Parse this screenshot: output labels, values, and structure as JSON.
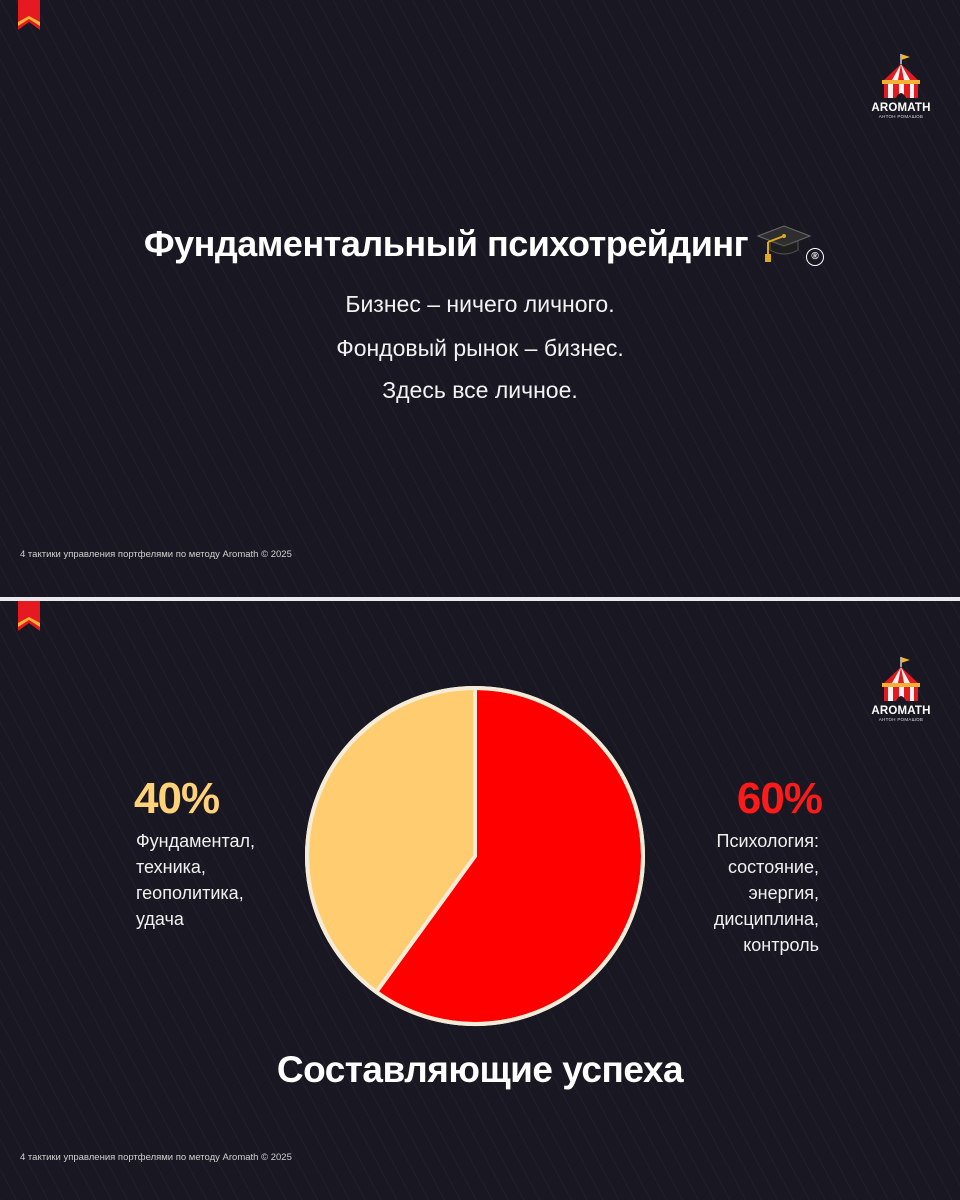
{
  "slide1": {
    "title": "Фундаментальный психотрейдинг",
    "registered_mark": "®",
    "lines": [
      "Бизнес – ничего личного.",
      "Фондовый рынок – бизнес.",
      "Здесь все личное."
    ],
    "footer": "4 тактики управления портфелями по методу Aromath © 2025"
  },
  "logo": {
    "name": "AROMATH",
    "subtitle": "АНТОН РОМАШОВ",
    "icon": "circus-tent-icon"
  },
  "slide2": {
    "title": "Составляющие успеха",
    "footer": "4 тактики управления портфелями по методу Aromath © 2025",
    "left": {
      "percent": "40%",
      "lines": [
        "Фундаментал,",
        "техника,",
        "геополитика,",
        "удача"
      ]
    },
    "right": {
      "percent": "60%",
      "lines": [
        "Психология:",
        "состояние,",
        "энергия,",
        "дисциплина,",
        "контроль"
      ]
    }
  },
  "chart_data": {
    "type": "pie",
    "title": "Составляющие успеха",
    "slices": [
      {
        "label": "Психология",
        "value": 60,
        "color": "#ff0000"
      },
      {
        "label": "Фундаментал",
        "value": 40,
        "color": "#ffcd70"
      }
    ],
    "border_color": "#f5ecd8"
  },
  "colors": {
    "background": "#191822",
    "accent_red": "#ff0000",
    "accent_yellow": "#ffd27a"
  }
}
